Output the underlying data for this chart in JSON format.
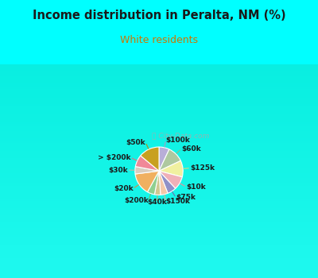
{
  "title": "Income distribution in Peralta, NM (%)",
  "subtitle": "White residents",
  "title_color": "#1a1a1a",
  "subtitle_color": "#cc7700",
  "bg_color": "#00ffff",
  "chart_bg_top": "#e8f8f0",
  "chart_bg_bottom": "#d0eed8",
  "labels": [
    "$100k",
    "$60k",
    "$125k",
    "$10k",
    "$75k",
    "$150k",
    "$40k",
    "$200k",
    "$20k",
    "$30k",
    "> $200k",
    "$50k"
  ],
  "values": [
    7,
    11,
    11,
    9,
    6,
    5,
    4,
    5,
    15,
    5,
    8,
    14
  ],
  "colors": [
    "#b8aed8",
    "#aec8a0",
    "#f0f0a0",
    "#f0b0b8",
    "#9090c8",
    "#f5c8a8",
    "#d0c890",
    "#90d090",
    "#f0b060",
    "#d8cdc0",
    "#f08898",
    "#c8a020"
  ],
  "line_colors": [
    "#a0a0c8",
    "#90b888",
    "#d8d880",
    "#e89098",
    "#7070b0",
    "#e0b090",
    "#b8b070",
    "#70c070",
    "#e09040",
    "#c0b8a8",
    "#e07080",
    "#b09010"
  ]
}
